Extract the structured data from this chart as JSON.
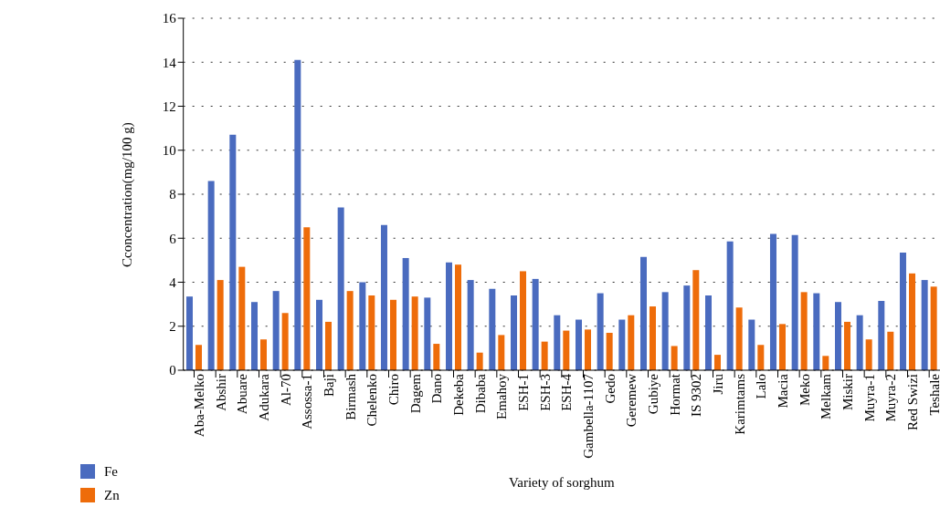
{
  "chart_data": {
    "type": "bar",
    "xlabel": "Variety of sorghum",
    "ylabel": "Cconcentration(mg/100 g)",
    "categories": [
      "Aba-Melko",
      "Abshir",
      "Abuare",
      "Adukara",
      "Al-70",
      "Assossa-1",
      "Baji",
      "Birmash",
      "Chelenko",
      "Chiro",
      "Dagem",
      "Dano",
      "Dekeba",
      "Dibaba",
      "Emahoy",
      "ESH-1",
      "ESH-3",
      "ESH-4",
      "Gambella-1107",
      "Gedo",
      "Geremew",
      "Gubiye",
      "Hormat",
      "IS 9302",
      "Jiru",
      "Karimtams",
      "Lalo",
      "Macia",
      "Meko",
      "Melkam",
      "Miskir",
      "Muyra-1",
      "Muyra-2",
      "Red Swizi",
      "Teshale"
    ],
    "series": [
      {
        "name": "Fe",
        "color": "#4a6bbf",
        "values": [
          3.35,
          8.6,
          10.7,
          3.1,
          3.6,
          14.1,
          3.2,
          7.4,
          4.0,
          6.6,
          5.1,
          3.3,
          4.9,
          4.1,
          3.7,
          3.4,
          4.15,
          2.5,
          2.3,
          3.5,
          2.3,
          5.15,
          3.55,
          3.85,
          3.4,
          5.85,
          2.3,
          6.2,
          6.15,
          3.5,
          3.1,
          2.5,
          3.15,
          5.35,
          4.1
        ]
      },
      {
        "name": "Zn",
        "color": "#ee6c0a",
        "values": [
          1.15,
          4.1,
          4.7,
          1.4,
          2.6,
          6.5,
          2.2,
          3.6,
          3.4,
          3.2,
          3.35,
          1.2,
          4.8,
          0.8,
          1.6,
          4.5,
          1.3,
          1.8,
          1.85,
          1.7,
          2.5,
          2.9,
          1.1,
          4.55,
          0.7,
          2.85,
          1.15,
          2.1,
          3.55,
          0.65,
          2.2,
          1.4,
          1.75,
          4.4,
          3.8
        ]
      }
    ],
    "ylim": [
      0,
      16
    ],
    "yticks": [
      0,
      2,
      4,
      6,
      8,
      10,
      12,
      14,
      16
    ],
    "grid": "y",
    "legend": "bottom left"
  }
}
